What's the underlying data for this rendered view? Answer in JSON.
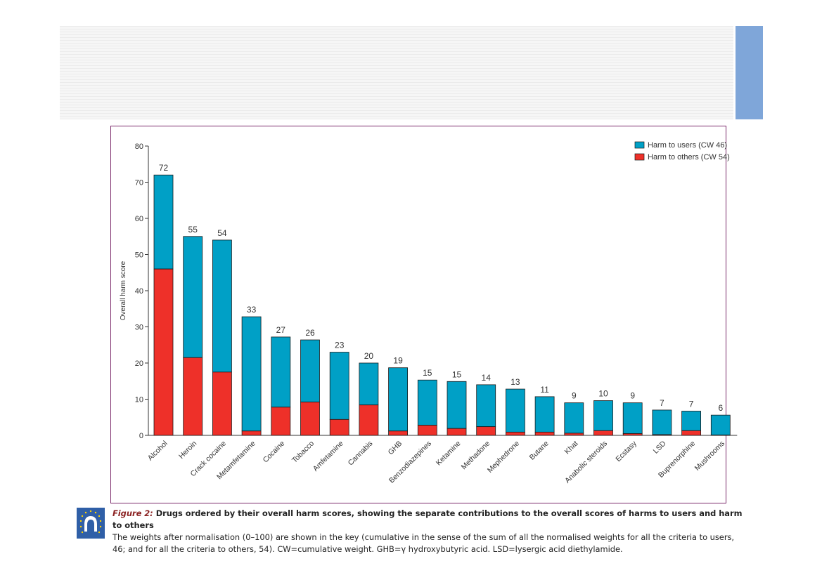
{
  "colors": {
    "users": "#00a0c6",
    "others": "#ee3029",
    "frame": "#7b2a6b",
    "banner_accent": "#7fa6d9",
    "logo": "#2f5fa7"
  },
  "caption": {
    "figure_label": "Figure 2:",
    "title": " Drugs ordered by their overall harm scores, showing the separate contributions to the overall scores of harms to users and harm to others",
    "body": "The weights after normalisation (0–100) are shown in the key (cumulative in the sense of the sum of all the normalised weights for all the criteria to users, 46; and for all the criteria to others, 54). CW=cumulative weight. GHB=γ hydroxybutyric acid. LSD=lysergic acid diethylamide."
  },
  "chart_data": {
    "type": "bar",
    "stacked": true,
    "ylabel": "Overall harm score",
    "ylim": [
      0,
      80
    ],
    "yticks": [
      0,
      10,
      20,
      30,
      40,
      50,
      60,
      70,
      80
    ],
    "legend_position": "top-right",
    "categories": [
      "Alcohol",
      "Heroin",
      "Crack cocaine",
      "Metamfetamine",
      "Cocaine",
      "Tobacco",
      "Amfetamine",
      "Cannabis",
      "GHB",
      "Benzodiazepines",
      "Ketamine",
      "Methadone",
      "Mephedrone",
      "Butane",
      "Khat",
      "Anabolic steroids",
      "Ecstasy",
      "LSD",
      "Buprenorphine",
      "Mushrooms"
    ],
    "totals_labels": [
      "72",
      "55",
      "54",
      "33",
      "27",
      "26",
      "23",
      "20",
      "19",
      "15",
      "15",
      "14",
      "13",
      "11",
      "9",
      "10",
      "9",
      "7",
      "7",
      "6"
    ],
    "series": [
      {
        "name": "Harm to others (CW 54)",
        "values": [
          46,
          21.5,
          17.5,
          1.2,
          7.8,
          9.2,
          4.4,
          8.4,
          1.2,
          2.8,
          1.9,
          2.4,
          0.9,
          0.9,
          0.6,
          1.3,
          0.5,
          0.2,
          1.3,
          0.1
        ]
      },
      {
        "name": "Harm to users (CW 46)",
        "values": [
          26,
          33.5,
          36.5,
          31.6,
          19.4,
          17.2,
          18.6,
          11.6,
          17.5,
          12.5,
          13.0,
          11.6,
          11.9,
          9.8,
          8.4,
          8.3,
          8.5,
          6.8,
          5.4,
          5.5
        ]
      }
    ],
    "legend": [
      "Harm to users (CW 46)",
      "Harm to others (CW 54)"
    ]
  }
}
